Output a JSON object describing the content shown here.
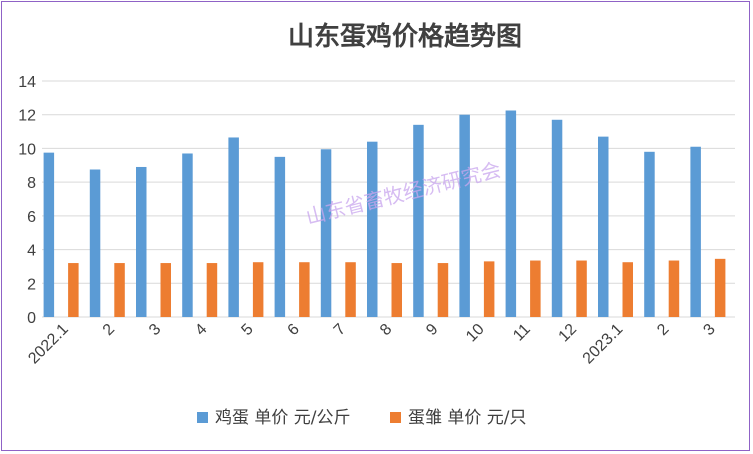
{
  "chart_data": {
    "type": "bar",
    "title": "山东蛋鸡价格趋势图",
    "watermark": "山东省畜牧经济研究会",
    "categories": [
      "2022.1",
      "2",
      "3",
      "4",
      "5",
      "6",
      "7",
      "8",
      "9",
      "10",
      "11",
      "12",
      "2023.1",
      "2",
      "3"
    ],
    "series": [
      {
        "name": "鸡蛋 单价 元/公斤",
        "color": "#5b9bd5",
        "values": [
          9.75,
          8.75,
          8.9,
          9.7,
          10.65,
          9.5,
          9.95,
          10.4,
          11.4,
          12.0,
          12.25,
          11.7,
          10.7,
          9.8,
          10.1
        ]
      },
      {
        "name": "蛋雏 单价 元/只",
        "color": "#ed7d31",
        "values": [
          3.2,
          3.2,
          3.2,
          3.2,
          3.25,
          3.25,
          3.25,
          3.2,
          3.2,
          3.3,
          3.35,
          3.35,
          3.25,
          3.35,
          3.45
        ]
      }
    ],
    "xlabel": "",
    "ylabel": "",
    "ylim": [
      0,
      14
    ],
    "yticks": [
      0,
      2,
      4,
      6,
      8,
      10,
      12,
      14
    ],
    "grid": true,
    "legend": "bottom"
  }
}
